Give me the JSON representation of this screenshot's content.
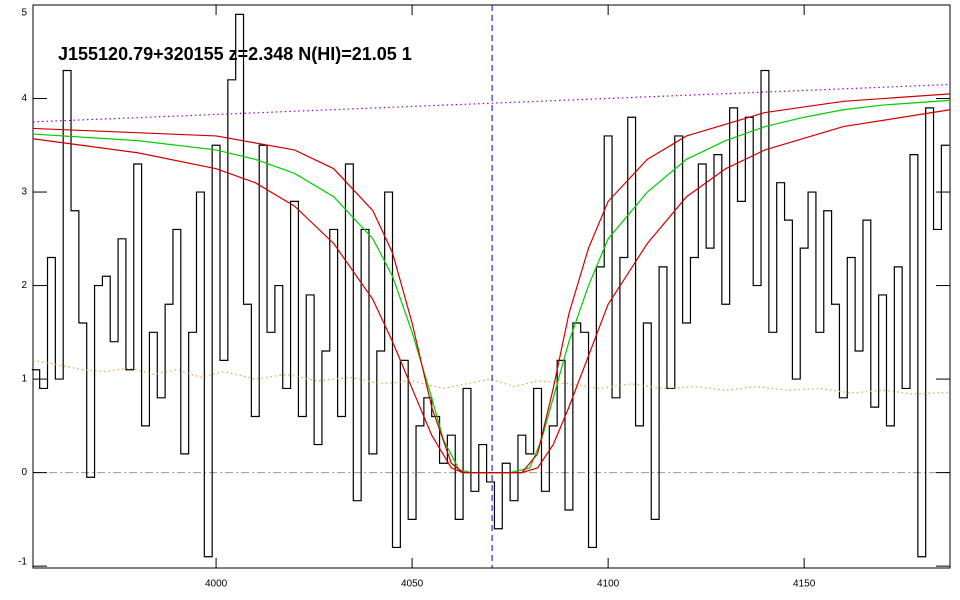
{
  "chart_data": {
    "type": "line",
    "title": "J155120.79+320155 z=2.348 N(HI)=21.05 1",
    "xlim": [
      3953.3,
      4187.2
    ],
    "ylim": [
      -1.02,
      5.0
    ],
    "xticks": [
      4000,
      4050,
      4100,
      4150
    ],
    "yticks": [
      -1,
      0,
      1,
      2,
      3,
      4,
      5
    ],
    "vline": 4070.4,
    "hline": 0,
    "series": [
      {
        "name": "flux",
        "style": "step",
        "color": "#000000",
        "x": [
          3954,
          3956,
          3958,
          3960,
          3962,
          3964,
          3966,
          3968,
          3970,
          3972,
          3974,
          3976,
          3978,
          3980,
          3982,
          3984,
          3986,
          3988,
          3990,
          3992,
          3994,
          3996,
          3998,
          4000,
          4002,
          4004,
          4006,
          4008,
          4010,
          4012,
          4014,
          4016,
          4018,
          4020,
          4022,
          4024,
          4026,
          4028,
          4030,
          4032,
          4034,
          4036,
          4038,
          4040,
          4042,
          4044,
          4046,
          4048,
          4050,
          4052,
          4054,
          4056,
          4058,
          4060,
          4062,
          4064,
          4066,
          4068,
          4070,
          4072,
          4074,
          4076,
          4078,
          4080,
          4082,
          4084,
          4086,
          4088,
          4090,
          4092,
          4094,
          4096,
          4098,
          4100,
          4102,
          4104,
          4106,
          4108,
          4110,
          4112,
          4114,
          4116,
          4118,
          4120,
          4122,
          4124,
          4126,
          4128,
          4130,
          4132,
          4134,
          4136,
          4138,
          4140,
          4142,
          4144,
          4146,
          4148,
          4150,
          4152,
          4154,
          4156,
          4158,
          4160,
          4162,
          4164,
          4166,
          4168,
          4170,
          4172,
          4174,
          4176,
          4178,
          4180,
          4182,
          4184,
          4186
        ],
        "values": [
          1.1,
          0.9,
          2.3,
          1.0,
          4.3,
          2.8,
          1.6,
          -0.05,
          2.0,
          2.1,
          1.4,
          2.5,
          1.1,
          3.3,
          0.5,
          1.5,
          0.8,
          1.8,
          2.6,
          0.2,
          1.5,
          3.0,
          -0.9,
          3.5,
          1.2,
          4.2,
          4.9,
          1.8,
          0.6,
          3.5,
          1.5,
          2.0,
          0.9,
          2.9,
          0.6,
          1.9,
          0.3,
          1.3,
          2.6,
          0.6,
          3.3,
          -0.3,
          2.6,
          0.2,
          1.3,
          3.0,
          -0.8,
          1.2,
          -0.5,
          0.5,
          0.8,
          0.6,
          0.1,
          0.4,
          -0.5,
          0.9,
          -0.2,
          0.3,
          -0.1,
          -0.6,
          0.1,
          -0.3,
          0.4,
          0.2,
          0.9,
          -0.2,
          0.5,
          1.2,
          -0.4,
          1.6,
          1.5,
          -0.8,
          2.2,
          3.6,
          0.8,
          2.3,
          3.8,
          0.5,
          1.6,
          -0.5,
          2.2,
          0.9,
          3.6,
          1.6,
          2.3,
          3.3,
          2.4,
          3.4,
          1.8,
          3.9,
          2.9,
          3.8,
          2.0,
          4.3,
          1.5,
          3.1,
          2.7,
          1.0,
          2.4,
          3.0,
          1.5,
          2.8,
          1.8,
          0.8,
          2.3,
          1.3,
          2.7,
          0.7,
          1.9,
          0.5,
          2.2,
          0.9,
          3.4,
          -0.9,
          3.9,
          2.6,
          3.5
        ]
      },
      {
        "name": "continuum",
        "style": "dotted",
        "color": "#9900cc",
        "x": [
          3953.3,
          4187.2
        ],
        "values": [
          3.75,
          4.15
        ]
      },
      {
        "name": "error",
        "style": "dotted",
        "color": "#e8a040",
        "x": [
          3953.3,
          3960,
          3966,
          3972,
          3978,
          3984,
          3990,
          3996,
          4002,
          4010,
          4018,
          4026,
          4034,
          4042,
          4050,
          4058,
          4064,
          4070,
          4076,
          4082,
          4090,
          4098,
          4106,
          4114,
          4122,
          4130,
          4138,
          4146,
          4154,
          4162,
          4170,
          4178,
          4187.2
        ],
        "values": [
          1.2,
          1.15,
          1.1,
          1.08,
          1.12,
          1.05,
          1.1,
          1.02,
          1.08,
          1.0,
          1.05,
          0.98,
          1.02,
          0.95,
          0.98,
          0.9,
          0.95,
          1.0,
          0.92,
          0.98,
          0.95,
          0.9,
          0.95,
          0.9,
          0.92,
          0.88,
          0.92,
          0.88,
          0.9,
          0.85,
          0.88,
          0.84,
          0.86
        ]
      },
      {
        "name": "model",
        "style": "solid",
        "color": "#00cc00",
        "x": [
          3953.3,
          3980,
          4000,
          4010,
          4020,
          4030,
          4040,
          4045,
          4050,
          4055,
          4058,
          4062,
          4065,
          4075,
          4080,
          4083,
          4086,
          4090,
          4095,
          4100,
          4110,
          4120,
          4130,
          4140,
          4150,
          4160,
          4170,
          4187.2
        ],
        "values": [
          3.62,
          3.55,
          3.45,
          3.35,
          3.2,
          2.95,
          2.5,
          2.1,
          1.5,
          0.8,
          0.35,
          0.03,
          0,
          0,
          0.05,
          0.35,
          0.8,
          1.4,
          2.0,
          2.5,
          3.0,
          3.35,
          3.55,
          3.7,
          3.8,
          3.88,
          3.93,
          3.98
        ]
      },
      {
        "name": "model-upper",
        "style": "solid",
        "color": "#cc0000",
        "x": [
          3953.3,
          4000,
          4020,
          4030,
          4040,
          4045,
          4050,
          4055,
          4060,
          4063,
          4078,
          4082,
          4086,
          4090,
          4095,
          4100,
          4110,
          4120,
          4140,
          4160,
          4187.2
        ],
        "values": [
          3.68,
          3.6,
          3.45,
          3.25,
          2.8,
          2.35,
          1.6,
          0.7,
          0.1,
          0,
          0,
          0.2,
          0.9,
          1.7,
          2.4,
          2.9,
          3.35,
          3.6,
          3.85,
          3.97,
          4.05
        ]
      },
      {
        "name": "model-lower",
        "style": "solid",
        "color": "#cc0000",
        "x": [
          3953.3,
          3980,
          4000,
          4010,
          4020,
          4030,
          4040,
          4045,
          4050,
          4055,
          4060,
          4063,
          4078,
          4082,
          4086,
          4090,
          4095,
          4100,
          4110,
          4120,
          4130,
          4140,
          4160,
          4187.2
        ],
        "values": [
          3.57,
          3.42,
          3.25,
          3.1,
          2.85,
          2.45,
          1.85,
          1.4,
          0.9,
          0.4,
          0.05,
          0,
          0,
          0.05,
          0.3,
          0.7,
          1.25,
          1.8,
          2.45,
          2.95,
          3.25,
          3.45,
          3.7,
          3.88
        ]
      }
    ]
  }
}
